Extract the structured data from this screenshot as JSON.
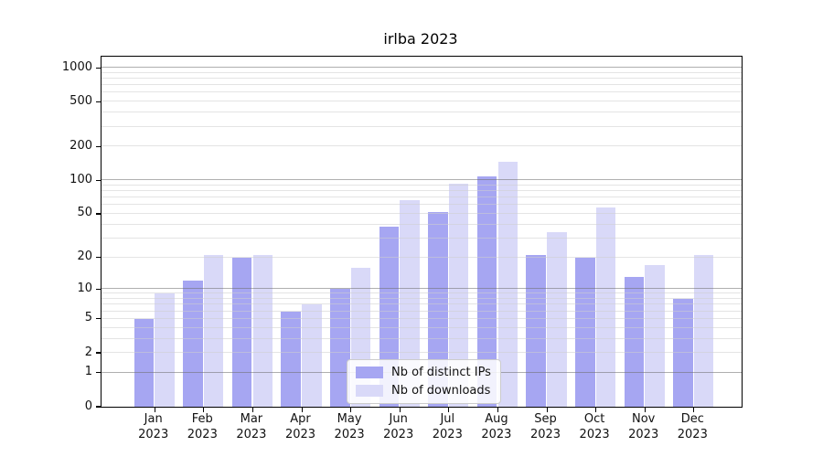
{
  "chart_data": {
    "type": "bar",
    "title": "irlba 2023",
    "year": "2023",
    "categories": [
      "Jan",
      "Feb",
      "Mar",
      "Apr",
      "May",
      "Jun",
      "Jul",
      "Aug",
      "Sep",
      "Oct",
      "Nov",
      "Dec"
    ],
    "series": [
      {
        "name": "Nb of distinct IPs",
        "color": "#a6a6f2",
        "values": [
          5,
          12,
          20,
          6,
          10,
          38,
          52,
          108,
          21,
          20,
          13,
          8
        ]
      },
      {
        "name": "Nb of downloads",
        "color": "#d9d9f8",
        "values": [
          9,
          21,
          21,
          7,
          16,
          66,
          93,
          145,
          34,
          57,
          17,
          21
        ]
      }
    ],
    "yscale": "log1p",
    "ylim": [
      0,
      1252
    ],
    "yticks": [
      0,
      1,
      2,
      5,
      10,
      20,
      50,
      100,
      200,
      500,
      1000
    ],
    "grid": "on",
    "grid_major": [
      1,
      10,
      100,
      1000
    ],
    "grid_minor": [
      2,
      3,
      4,
      5,
      6,
      7,
      8,
      9,
      20,
      30,
      40,
      50,
      60,
      70,
      80,
      90,
      200,
      300,
      400,
      500,
      600,
      700,
      800,
      900
    ],
    "legend_position": "bottom-center",
    "colors": {
      "axis": "#000000",
      "grid_major": "rgba(110,110,110,0.55)",
      "grid_minor": "rgba(205,205,205,0.55)"
    }
  }
}
